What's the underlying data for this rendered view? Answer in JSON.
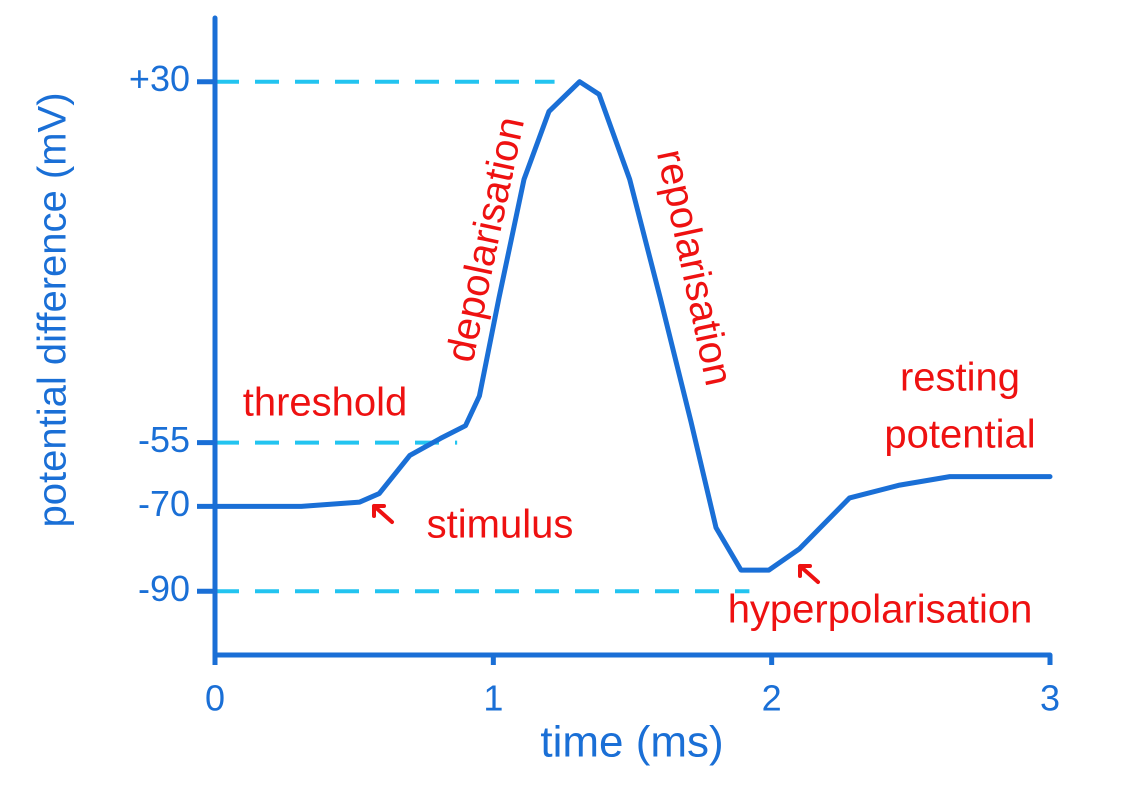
{
  "chart_data": {
    "type": "line",
    "x_label": "time (ms)",
    "y_label": "potential difference (mV)",
    "x": [
      0,
      0.31,
      0.52,
      0.59,
      0.7,
      0.81,
      0.9,
      0.95,
      1.02,
      1.11,
      1.2,
      1.31,
      1.38,
      1.49,
      1.6,
      1.71,
      1.8,
      1.89,
      1.99,
      2.1,
      2.28,
      2.46,
      2.64,
      3
    ],
    "values": [
      -70,
      -70,
      -69,
      -67,
      -58,
      -54,
      -51,
      -44,
      -21,
      7,
      23,
      30,
      27,
      7,
      -21,
      -50,
      -75,
      -85,
      -85,
      -80,
      -68,
      -65,
      -63,
      -63
    ],
    "color": "#1a6fd6",
    "xlim": [
      0,
      3
    ],
    "xticks": [
      0,
      1,
      2,
      3
    ],
    "ylim": [
      -105,
      45
    ],
    "yticks": [
      {
        "value": 30,
        "label": "+30"
      },
      -55,
      -70,
      -90
    ],
    "guide_lines": [
      {
        "y": 30,
        "x": [
          0,
          1.22
        ]
      },
      {
        "y": -55,
        "x": [
          0,
          0.87
        ]
      },
      {
        "y": -90,
        "x": [
          0,
          1.92
        ]
      }
    ],
    "guide_color": "#22c4f0",
    "annotation_color": "#ee1111",
    "annotations": [
      {
        "text": "threshold"
      },
      {
        "text": "depolarisation"
      },
      {
        "text": "repolarisation"
      },
      {
        "text": "stimulus"
      },
      {
        "text": "hyperpolarisation"
      },
      {
        "text": [
          "resting",
          "potential"
        ]
      }
    ]
  }
}
